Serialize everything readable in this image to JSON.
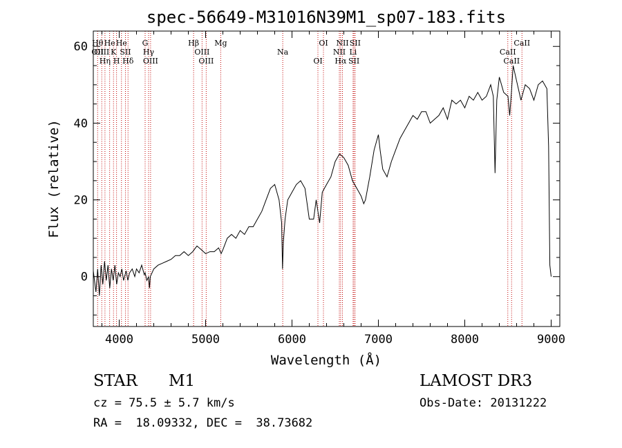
{
  "chart_data": {
    "type": "line",
    "title": "spec-56649-M31016N39M1_sp07-183.fits",
    "xlabel": "Wavelength (Å)",
    "ylabel": "Flux (relative)",
    "xlim": [
      3700,
      9100
    ],
    "ylim": [
      -13,
      64
    ],
    "xticks": [
      4000,
      5000,
      6000,
      7000,
      8000,
      9000
    ],
    "yticks": [
      0,
      20,
      40,
      60
    ],
    "series": [
      {
        "color": "#000000",
        "points": [
          [
            3700,
            1.5
          ],
          [
            3730,
            -4
          ],
          [
            3750,
            2
          ],
          [
            3770,
            -5
          ],
          [
            3790,
            3
          ],
          [
            3810,
            -2
          ],
          [
            3830,
            4
          ],
          [
            3850,
            -1
          ],
          [
            3870,
            3
          ],
          [
            3890,
            -3
          ],
          [
            3910,
            2
          ],
          [
            3930,
            -1
          ],
          [
            3950,
            3
          ],
          [
            3970,
            -2
          ],
          [
            3990,
            1
          ],
          [
            4010,
            0
          ],
          [
            4030,
            2
          ],
          [
            4050,
            -1
          ],
          [
            4080,
            1.5
          ],
          [
            4100,
            -1
          ],
          [
            4120,
            1
          ],
          [
            4150,
            2
          ],
          [
            4180,
            0
          ],
          [
            4200,
            2
          ],
          [
            4230,
            1
          ],
          [
            4260,
            3
          ],
          [
            4290,
            0.5
          ],
          [
            4300,
            1
          ],
          [
            4320,
            -1
          ],
          [
            4340,
            0
          ],
          [
            4350,
            -3
          ],
          [
            4360,
            0
          ],
          [
            4380,
            1
          ],
          [
            4400,
            2
          ],
          [
            4450,
            3
          ],
          [
            4500,
            3.5
          ],
          [
            4550,
            4
          ],
          [
            4600,
            4.5
          ],
          [
            4650,
            5.5
          ],
          [
            4700,
            5.5
          ],
          [
            4750,
            6.5
          ],
          [
            4800,
            5.5
          ],
          [
            4850,
            6.5
          ],
          [
            4900,
            8
          ],
          [
            4950,
            7
          ],
          [
            5000,
            6
          ],
          [
            5050,
            6.5
          ],
          [
            5100,
            6.5
          ],
          [
            5150,
            7.5
          ],
          [
            5180,
            6
          ],
          [
            5200,
            7
          ],
          [
            5250,
            10
          ],
          [
            5300,
            11
          ],
          [
            5350,
            10
          ],
          [
            5400,
            12
          ],
          [
            5450,
            11
          ],
          [
            5500,
            13
          ],
          [
            5550,
            13
          ],
          [
            5600,
            15
          ],
          [
            5650,
            17
          ],
          [
            5700,
            20
          ],
          [
            5750,
            23
          ],
          [
            5800,
            24
          ],
          [
            5850,
            20
          ],
          [
            5880,
            14
          ],
          [
            5890,
            2
          ],
          [
            5900,
            9
          ],
          [
            5920,
            15
          ],
          [
            5950,
            20
          ],
          [
            6000,
            22
          ],
          [
            6050,
            24
          ],
          [
            6100,
            25
          ],
          [
            6150,
            23
          ],
          [
            6200,
            15
          ],
          [
            6250,
            15
          ],
          [
            6280,
            20
          ],
          [
            6300,
            17
          ],
          [
            6320,
            14
          ],
          [
            6350,
            22
          ],
          [
            6400,
            24
          ],
          [
            6450,
            26
          ],
          [
            6500,
            30
          ],
          [
            6550,
            32
          ],
          [
            6600,
            31
          ],
          [
            6650,
            29
          ],
          [
            6700,
            25
          ],
          [
            6750,
            23
          ],
          [
            6800,
            21
          ],
          [
            6830,
            19
          ],
          [
            6850,
            20
          ],
          [
            6900,
            26
          ],
          [
            6950,
            33
          ],
          [
            7000,
            37
          ],
          [
            7020,
            33
          ],
          [
            7050,
            28
          ],
          [
            7100,
            26
          ],
          [
            7150,
            30
          ],
          [
            7200,
            33
          ],
          [
            7250,
            36
          ],
          [
            7300,
            38
          ],
          [
            7350,
            40
          ],
          [
            7400,
            42
          ],
          [
            7450,
            41
          ],
          [
            7500,
            43
          ],
          [
            7550,
            43
          ],
          [
            7600,
            40
          ],
          [
            7650,
            41
          ],
          [
            7700,
            42
          ],
          [
            7750,
            44
          ],
          [
            7800,
            41
          ],
          [
            7850,
            46
          ],
          [
            7900,
            45
          ],
          [
            7950,
            46
          ],
          [
            8000,
            44
          ],
          [
            8050,
            47
          ],
          [
            8100,
            46
          ],
          [
            8150,
            48
          ],
          [
            8200,
            46
          ],
          [
            8250,
            47
          ],
          [
            8300,
            50
          ],
          [
            8330,
            47
          ],
          [
            8350,
            27
          ],
          [
            8370,
            46
          ],
          [
            8400,
            52
          ],
          [
            8450,
            48
          ],
          [
            8500,
            47
          ],
          [
            8520,
            42
          ],
          [
            8540,
            48
          ],
          [
            8560,
            55
          ],
          [
            8600,
            51
          ],
          [
            8650,
            46
          ],
          [
            8700,
            50
          ],
          [
            8750,
            49
          ],
          [
            8800,
            46
          ],
          [
            8850,
            50
          ],
          [
            8900,
            51
          ],
          [
            8950,
            49
          ],
          [
            8970,
            34
          ],
          [
            8985,
            3
          ],
          [
            9000,
            0
          ]
        ]
      }
    ],
    "lines": [
      {
        "x": 3750,
        "labels": [
          "Hθ",
          "OII"
        ]
      },
      {
        "x": 3798,
        "labels": [
          "OIII"
        ]
      },
      {
        "x": 3835,
        "labels": [
          "Hη"
        ]
      },
      {
        "x": 3889,
        "labels": [
          "He"
        ]
      },
      {
        "x": 3934,
        "labels": [
          "K"
        ]
      },
      {
        "x": 3969,
        "labels": [
          "H"
        ]
      },
      {
        "x": 4026,
        "labels": [
          "He"
        ]
      },
      {
        "x": 4072,
        "labels": [
          "SII"
        ]
      },
      {
        "x": 4102,
        "labels": [
          "Hδ"
        ]
      },
      {
        "x": 4300,
        "labels": [
          "G"
        ]
      },
      {
        "x": 4340,
        "labels": [
          "Hγ"
        ]
      },
      {
        "x": 4363,
        "labels": [
          "OIII"
        ]
      },
      {
        "x": 4861,
        "labels": [
          "Hβ"
        ]
      },
      {
        "x": 4959,
        "labels": [
          "OIII"
        ]
      },
      {
        "x": 5007,
        "labels": [
          "OIII"
        ]
      },
      {
        "x": 5175,
        "labels": [
          "Mg"
        ]
      },
      {
        "x": 5893,
        "labels": [
          "Na"
        ]
      },
      {
        "x": 6300,
        "labels": [
          "OI"
        ]
      },
      {
        "x": 6364,
        "labels": [
          "OI"
        ]
      },
      {
        "x": 6548,
        "labels": [
          "NII"
        ]
      },
      {
        "x": 6563,
        "labels": [
          "Hα"
        ]
      },
      {
        "x": 6584,
        "labels": [
          "NII"
        ]
      },
      {
        "x": 6707,
        "labels": [
          "Li"
        ]
      },
      {
        "x": 6717,
        "labels": [
          "SII"
        ]
      },
      {
        "x": 6731,
        "labels": [
          "SII"
        ]
      },
      {
        "x": 8498,
        "labels": [
          "CaII"
        ]
      },
      {
        "x": 8542,
        "labels": [
          "CaII"
        ]
      },
      {
        "x": 8662,
        "labels": [
          "CaII"
        ]
      }
    ],
    "grid": false
  },
  "info": {
    "class": "STAR",
    "subclass": "M1",
    "survey": "LAMOST DR3",
    "cz": "cz = 75.5 ± 5.7 km/s",
    "obs_date": "Obs-Date: 20131222",
    "coords": "RA =  18.09332, DEC =  38.73682"
  }
}
